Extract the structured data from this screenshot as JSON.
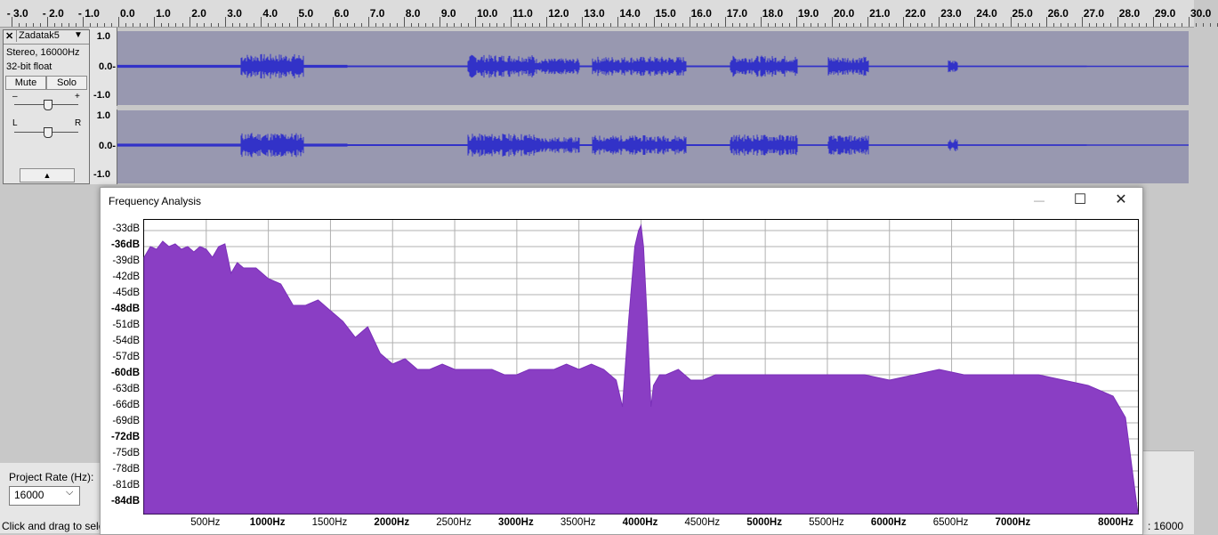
{
  "ruler": {
    "labels": [
      "- 3.0",
      "- 2.0",
      "- 1.0",
      "0.0",
      "1.0",
      "2.0",
      "3.0",
      "4.0",
      "5.0",
      "6.0",
      "7.0",
      "8.0",
      "9.0",
      "10.0",
      "11.0",
      "12.0",
      "13.0",
      "14.0",
      "15.0",
      "16.0",
      "17.0",
      "18.0",
      "19.0",
      "20.0",
      "21.0",
      "22.0",
      "23.0",
      "24.0",
      "25.0",
      "26.0",
      "27.0",
      "28.0",
      "29.0",
      "30.0"
    ]
  },
  "track": {
    "name": "Zadatak5",
    "close_glyph": "✕",
    "menu_glyph": "▼",
    "info_line1": "Stereo, 16000Hz",
    "info_line2": "32-bit float",
    "mute_label": "Mute",
    "solo_label": "Solo",
    "gain_minus": "–",
    "gain_plus": "+",
    "pan_left": "L",
    "pan_right": "R",
    "collapse_glyph": "▲",
    "scale_top": "1.0",
    "scale_mid": "0.0-",
    "scale_bot": "-1.0",
    "scale2_top": "1.0",
    "scale2_mid": "0.0-",
    "scale2_bot": "-1.0"
  },
  "dialog": {
    "title": "Frequency Analysis",
    "minimize_glyph": "—",
    "maximize_glyph": "☐",
    "close_glyph": "✕",
    "colors": {
      "fill": "#8a3ec4",
      "stroke": "#7a30b8",
      "grid": "#b0b0b0"
    }
  },
  "chart_data": {
    "type": "area",
    "xlabel": "",
    "ylabel": "",
    "xlim": [
      0,
      8000
    ],
    "ylim": [
      -86,
      -31
    ],
    "grid": true,
    "y_ticks": [
      {
        "label": "-33dB",
        "bold": false
      },
      {
        "label": "-36dB",
        "bold": true
      },
      {
        "label": "-39dB",
        "bold": false
      },
      {
        "label": "-42dB",
        "bold": false
      },
      {
        "label": "-45dB",
        "bold": false
      },
      {
        "label": "-48dB",
        "bold": true
      },
      {
        "label": "-51dB",
        "bold": false
      },
      {
        "label": "-54dB",
        "bold": false
      },
      {
        "label": "-57dB",
        "bold": false
      },
      {
        "label": "-60dB",
        "bold": true
      },
      {
        "label": "-63dB",
        "bold": false
      },
      {
        "label": "-66dB",
        "bold": false
      },
      {
        "label": "-69dB",
        "bold": false
      },
      {
        "label": "-72dB",
        "bold": true
      },
      {
        "label": "-75dB",
        "bold": false
      },
      {
        "label": "-78dB",
        "bold": false
      },
      {
        "label": "-81dB",
        "bold": false
      },
      {
        "label": "-84dB",
        "bold": true
      }
    ],
    "x_ticks": [
      {
        "label": "500Hz",
        "bold": false
      },
      {
        "label": "1000Hz",
        "bold": true
      },
      {
        "label": "1500Hz",
        "bold": false
      },
      {
        "label": "2000Hz",
        "bold": true
      },
      {
        "label": "2500Hz",
        "bold": false
      },
      {
        "label": "3000Hz",
        "bold": true
      },
      {
        "label": "3500Hz",
        "bold": false
      },
      {
        "label": "4000Hz",
        "bold": true
      },
      {
        "label": "4500Hz",
        "bold": false
      },
      {
        "label": "5000Hz",
        "bold": true
      },
      {
        "label": "5500Hz",
        "bold": false
      },
      {
        "label": "6000Hz",
        "bold": true
      },
      {
        "label": "6500Hz",
        "bold": false
      },
      {
        "label": "7000Hz",
        "bold": true
      },
      {
        "label": "8000Hz",
        "bold": true
      }
    ],
    "series": [
      {
        "x": [
          0,
          50,
          100,
          150,
          200,
          250,
          300,
          350,
          400,
          450,
          500,
          550,
          600,
          650,
          700,
          750,
          800,
          900,
          1000,
          1100,
          1200,
          1300,
          1400,
          1500,
          1600,
          1700,
          1800,
          1900,
          2000,
          2100,
          2200,
          2300,
          2400,
          2500,
          2600,
          2700,
          2800,
          2900,
          3000,
          3100,
          3200,
          3300,
          3400,
          3500,
          3600,
          3700,
          3800,
          3850,
          3900,
          3950,
          3980,
          4000,
          4020,
          4050,
          4080,
          4100,
          4150,
          4200,
          4300,
          4400,
          4500,
          4600,
          4700,
          4800,
          5000,
          5200,
          5400,
          5600,
          5800,
          6000,
          6200,
          6400,
          6600,
          6800,
          7000,
          7200,
          7400,
          7600,
          7800,
          7900,
          8000
        ],
        "y": [
          -38,
          -36,
          -36.5,
          -35,
          -36,
          -35.5,
          -36.5,
          -36,
          -37,
          -36,
          -36.5,
          -38,
          -36,
          -35.5,
          -41,
          -39,
          -40,
          -40,
          -42,
          -43,
          -47,
          -47,
          -46,
          -48,
          -50,
          -53,
          -51,
          -56,
          -58,
          -57,
          -59,
          -59,
          -58,
          -59,
          -59,
          -59,
          -59,
          -60,
          -60,
          -59,
          -59,
          -59,
          -58,
          -59,
          -58,
          -59,
          -61,
          -66,
          -50,
          -36,
          -33,
          -32,
          -36,
          -50,
          -66,
          -62,
          -60,
          -60,
          -59,
          -61,
          -61,
          -60,
          -60,
          -60,
          -60,
          -60,
          -60,
          -60,
          -60,
          -61,
          -60,
          -59,
          -60,
          -60,
          -60,
          -60,
          -61,
          -62,
          -64,
          -68,
          -86
        ]
      }
    ]
  },
  "toolbar": {
    "project_rate_label": "Project Rate (Hz):",
    "project_rate_value": "16000",
    "project_rate_chevron": "⌵",
    "status_left": "Click and drag to sele",
    "status_right": ": 16000"
  }
}
